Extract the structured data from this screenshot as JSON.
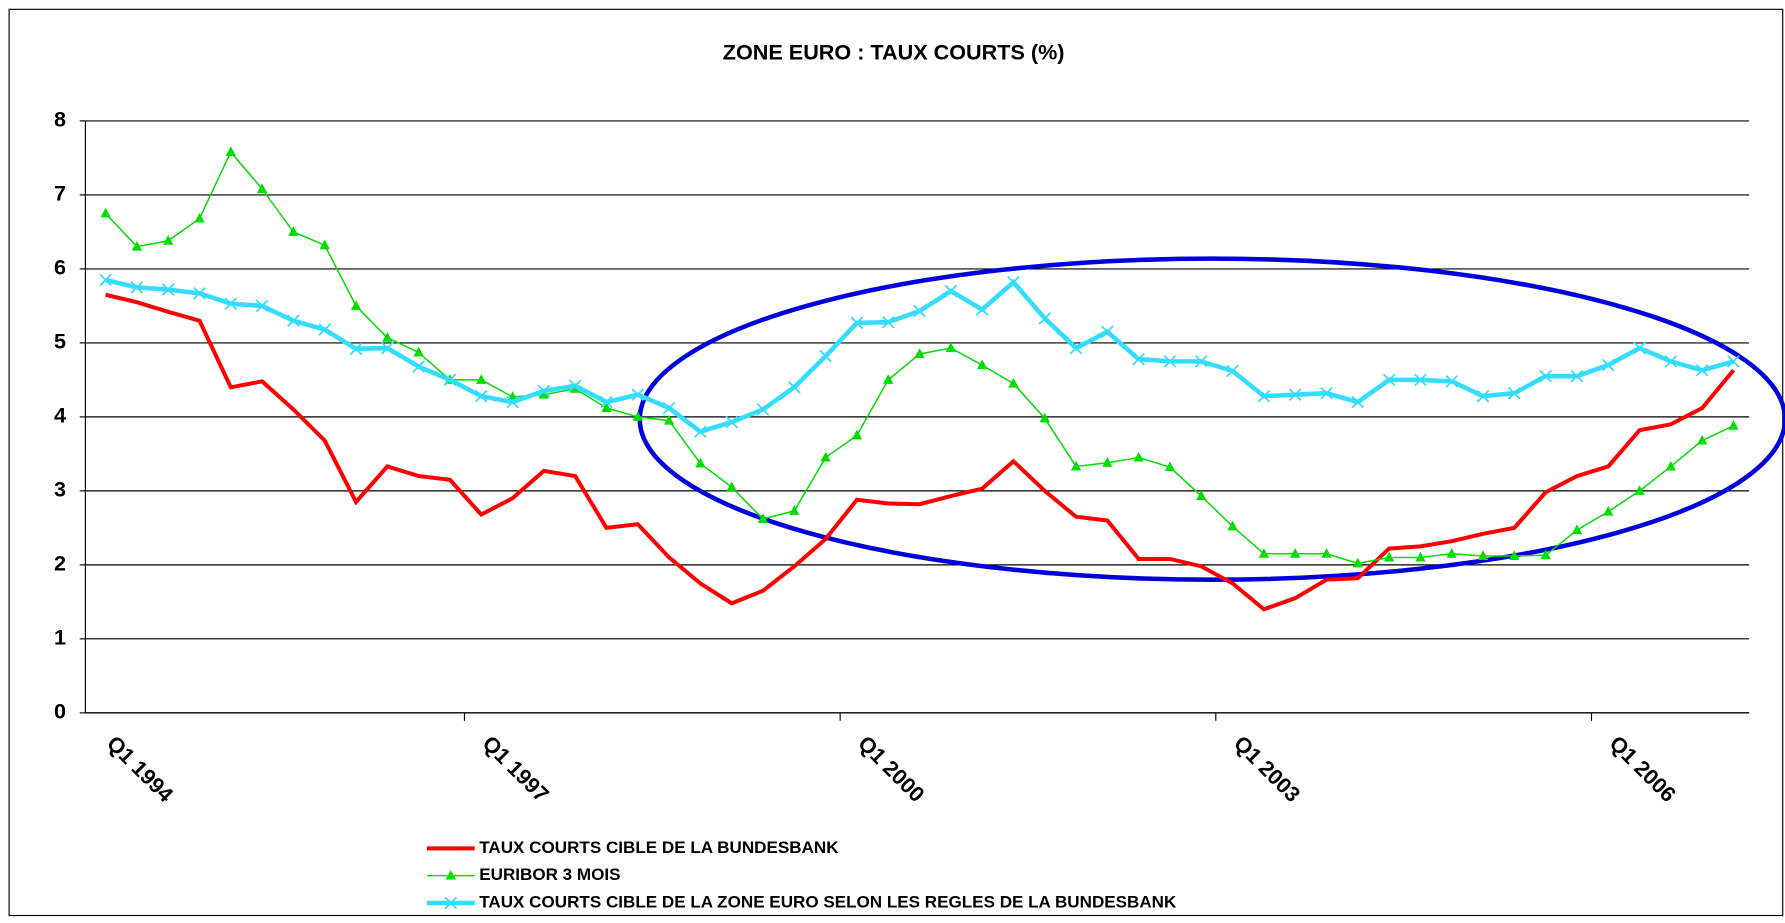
{
  "chart_data": {
    "type": "line",
    "title": "ZONE EURO : TAUX COURTS (%)",
    "categories": [
      "Q1 1994",
      null,
      null,
      null,
      null,
      null,
      null,
      null,
      null,
      null,
      null,
      null,
      "Q1 1997",
      null,
      null,
      null,
      null,
      null,
      null,
      null,
      null,
      null,
      null,
      null,
      "Q1 2000",
      null,
      null,
      null,
      null,
      null,
      null,
      null,
      null,
      null,
      null,
      null,
      "Q1 2003",
      null,
      null,
      null,
      null,
      null,
      null,
      null,
      null,
      null,
      null,
      null,
      "Q1 2006",
      null,
      null,
      null,
      null
    ],
    "series": [
      {
        "name": "TAUX COURTS CIBLE DE LA BUNDESBANK",
        "color": "#ff0000",
        "marker": "none",
        "values": [
          5.65,
          5.55,
          5.42,
          5.3,
          4.4,
          4.48,
          4.1,
          3.68,
          2.85,
          3.33,
          3.2,
          3.15,
          2.68,
          2.9,
          3.27,
          3.2,
          2.5,
          2.55,
          2.1,
          1.75,
          1.48,
          1.65,
          1.98,
          2.35,
          2.88,
          2.83,
          2.82,
          2.93,
          3.03,
          3.4,
          3.0,
          2.65,
          2.6,
          2.08,
          2.08,
          1.98,
          1.75,
          1.4,
          1.55,
          1.8,
          1.82,
          2.22,
          2.25,
          2.32,
          2.42,
          2.5,
          2.98,
          3.2,
          3.33,
          3.82,
          3.9,
          4.12,
          4.63
        ]
      },
      {
        "name": "EURIBOR 3 MOIS",
        "color": "#00dd00",
        "marker": "triangle",
        "values": [
          6.75,
          6.3,
          6.38,
          6.68,
          7.58,
          7.08,
          6.5,
          6.32,
          5.5,
          5.07,
          4.87,
          4.5,
          4.5,
          4.27,
          4.3,
          4.38,
          4.12,
          4.0,
          3.95,
          3.37,
          3.05,
          2.62,
          2.73,
          3.45,
          3.75,
          4.5,
          4.85,
          4.93,
          4.7,
          4.45,
          3.98,
          3.33,
          3.38,
          3.45,
          3.32,
          2.93,
          2.52,
          2.15,
          2.15,
          2.15,
          2.02,
          2.1,
          2.1,
          2.15,
          2.12,
          2.12,
          2.13,
          2.47,
          2.72,
          3.0,
          3.33,
          3.68,
          3.88
        ]
      },
      {
        "name": "TAUX COURTS CIBLE DE LA ZONE EURO SELON LES REGLES DE LA BUNDESBANK",
        "color": "#33ddff",
        "marker": "x",
        "values": [
          5.85,
          5.75,
          5.72,
          5.67,
          5.53,
          5.5,
          5.3,
          5.18,
          4.92,
          4.93,
          4.68,
          4.5,
          4.28,
          4.2,
          4.35,
          4.42,
          4.2,
          4.3,
          4.12,
          3.8,
          3.93,
          4.1,
          4.4,
          4.82,
          5.27,
          5.28,
          5.43,
          5.7,
          5.45,
          5.82,
          5.33,
          4.93,
          5.15,
          4.78,
          4.75,
          4.75,
          4.62,
          4.28,
          4.3,
          4.32,
          4.2,
          4.5,
          4.5,
          4.48,
          4.28,
          4.32,
          4.55,
          4.55,
          4.7,
          4.93,
          4.75,
          4.63,
          4.75
        ]
      }
    ],
    "ylim": [
      0,
      8
    ],
    "yticks": [
      0,
      1,
      2,
      3,
      4,
      5,
      6,
      7,
      8
    ],
    "grid": true,
    "legend": "bottom"
  }
}
